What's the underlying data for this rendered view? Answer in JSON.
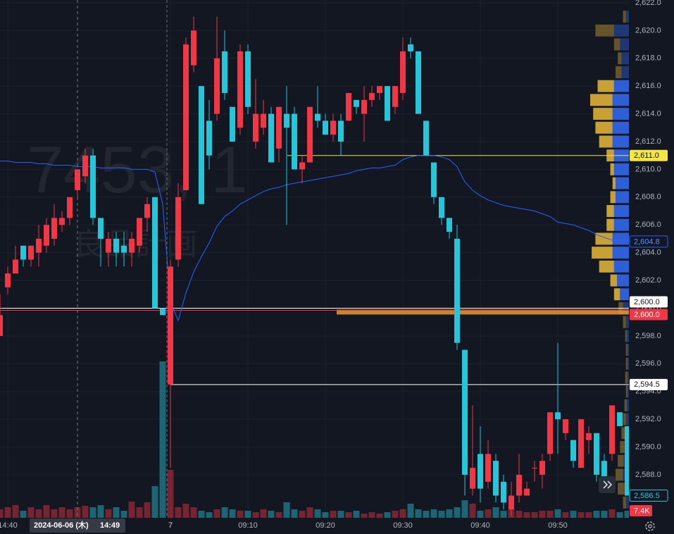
{
  "chart_data": {
    "type": "candlestick",
    "watermark": {
      "symbol": "7453, 1",
      "name": "良品計画"
    },
    "categories": [
      null,
      "14:40",
      null,
      null,
      null,
      null,
      null,
      null,
      null,
      null,
      null,
      null,
      null,
      null,
      null,
      null,
      null,
      null,
      null,
      null,
      null,
      null,
      "7",
      null,
      null,
      null,
      null,
      null,
      null,
      null,
      null,
      null,
      "09:10",
      null,
      null,
      null,
      null,
      null,
      null,
      null,
      null,
      null,
      "09:20",
      null,
      null,
      null,
      null,
      null,
      null,
      null,
      null,
      null,
      "09:30",
      null,
      null,
      null,
      null,
      null,
      null,
      null,
      null,
      null,
      "09:40",
      null,
      null,
      null,
      null,
      null,
      null,
      null,
      null,
      null,
      "09:50",
      null,
      null,
      null,
      null,
      null,
      null,
      null,
      null,
      null
    ],
    "open": [
      2598,
      2601.5,
      2602.5,
      2604.5,
      2603.5,
      2604,
      2604.5,
      2605,
      2606,
      2606.5,
      2608.5,
      2609.5,
      2611,
      2606.5,
      2604,
      2605,
      2604.5,
      2604,
      2604.5,
      2606.5,
      2608,
      2600,
      2594.5,
      2603.5,
      2608.5,
      2617.5,
      2616,
      2613.5,
      2614,
      2618.5,
      2614.5,
      2613,
      2618.5,
      2612,
      2613,
      2614,
      2611.5,
      2614,
      2614,
      2610,
      2610.5,
      2614,
      2613.5,
      2612.5,
      2613.5,
      2613.5,
      2615,
      2614,
      2615,
      2615.5,
      2616,
      2614.5,
      2615.5,
      2619,
      2618.5,
      2613.5,
      2610.5,
      2608,
      2606.5,
      2605,
      2597,
      2587,
      2589.5,
      2587.5,
      2589,
      2587.5,
      2585.5,
      2586.5,
      2586.5,
      2588.5,
      2588,
      2589.5,
      2592.5,
      2591,
      2590.5,
      2588.5,
      2590.5,
      2591,
      2589,
      2589.5,
      2592.5,
      2591.5
    ],
    "high": [
      2601,
      2603,
      2604.5,
      2604.5,
      2604.5,
      2606,
      2606.5,
      2607.5,
      2607,
      2608,
      2610,
      2611.5,
      2611.5,
      2606.5,
      2605.5,
      2605.5,
      2605.5,
      2605.5,
      2606.5,
      2608,
      2608,
      2600,
      2603.5,
      2609,
      2619.5,
      2621,
      2616,
      2615,
      2621,
      2620,
      2614.5,
      2619,
      2619,
      2616.5,
      2615,
      2614.5,
      2614.5,
      2616,
      2614.5,
      2611,
      2614.5,
      2616,
      2614,
      2614,
      2614,
      2615.5,
      2615,
      2616,
      2616,
      2616,
      2616,
      2616,
      2619.5,
      2619.5,
      2618.5,
      2613.5,
      2610.5,
      2608,
      2606.5,
      2606,
      2597,
      2593,
      2591.5,
      2590.5,
      2589.5,
      2588,
      2587.5,
      2589.5,
      2587.5,
      2589,
      2589.5,
      2592.5,
      2597.5,
      2592,
      2590.5,
      2592,
      2591.5,
      2591,
      2589.5,
      2593,
      2592.5,
      2591.5
    ],
    "low": [
      2598,
      2601,
      2602.5,
      2603,
      2603,
      2603,
      2604,
      2604.5,
      2605.5,
      2606,
      2608,
      2609,
      2606,
      2603,
      2603,
      2603,
      2603,
      2603,
      2604,
      2605.5,
      2600,
      2599.5,
      2588.5,
      2603,
      2608.5,
      2617,
      2607.5,
      2610,
      2613.5,
      2615,
      2612,
      2612.5,
      2614,
      2611.5,
      2612.5,
      2610.5,
      2610.5,
      2606,
      2610,
      2609,
      2610.5,
      2613,
      2612.5,
      2612,
      2611,
      2613.5,
      2614,
      2612,
      2614.5,
      2615,
      2613.5,
      2614,
      2615,
      2618,
      2614,
      2611,
      2607.5,
      2606,
      2605,
      2597,
      2586.5,
      2586.5,
      2586,
      2587,
      2586,
      2585.5,
      2585,
      2586,
      2586.5,
      2587.5,
      2587,
      2589,
      2589.5,
      2590.5,
      2588.5,
      2588.5,
      2589.5,
      2587.5,
      2587,
      2589,
      2591.5,
      2586.5
    ],
    "close": [
      2599.5,
      2602.5,
      2603.5,
      2603.5,
      2604.5,
      2605,
      2606,
      2606.5,
      2606.5,
      2608,
      2610,
      2611,
      2606.5,
      2605,
      2605,
      2604,
      2604,
      2605,
      2606.5,
      2607.5,
      2600,
      2599.5,
      2603,
      2608,
      2619,
      2620,
      2607.5,
      2611,
      2618,
      2615.5,
      2612,
      2618.5,
      2614.5,
      2614,
      2614,
      2610.5,
      2614.5,
      2613,
      2610,
      2610.5,
      2614.5,
      2613.5,
      2612.5,
      2613.5,
      2612,
      2615.5,
      2614.5,
      2615,
      2615.5,
      2616,
      2613.5,
      2616,
      2618.5,
      2618.5,
      2614,
      2611,
      2608,
      2606.5,
      2605.5,
      2597.5,
      2588,
      2588.5,
      2587,
      2589.5,
      2586.5,
      2586,
      2586.5,
      2588,
      2587,
      2588.5,
      2589,
      2592.5,
      2592,
      2592,
      2589,
      2592,
      2591,
      2588,
      2587.5,
      2593,
      2591.5,
      2586.5
    ],
    "last_label": "2,586.5",
    "up_color": "#f23645",
    "down_color": "#26c6da",
    "vwap": {
      "color": "#2962ff",
      "last_label": "2,604.8",
      "values": [
        2610.6,
        2610.6,
        2610.5,
        2610.5,
        2610.5,
        2610.4,
        2610.4,
        2610.3,
        2610.3,
        2610.3,
        2610.2,
        2610.2,
        2610.2,
        2610.1,
        2610.1,
        2610.1,
        2610.1,
        2610,
        2610,
        2610,
        2609.8,
        2607.5,
        2600.5,
        2599.1,
        2601.1,
        2602.6,
        2603.7,
        2604.7,
        2605.9,
        2606.6,
        2607,
        2607.5,
        2607.8,
        2608.1,
        2608.4,
        2608.6,
        2608.7,
        2608.9,
        2609,
        2609.1,
        2609.2,
        2609.3,
        2609.4,
        2609.5,
        2609.6,
        2609.7,
        2609.9,
        2610,
        2610.1,
        2610.1,
        2610.2,
        2610.3,
        2610.7,
        2610.9,
        2611,
        2611,
        2611,
        2610.9,
        2610.7,
        2610.2,
        2609.1,
        2608.5,
        2608.1,
        2607.8,
        2607.6,
        2607.4,
        2607.3,
        2607.2,
        2607.1,
        2607,
        2606.8,
        2606.6,
        2606.2,
        2606.1,
        2606,
        2605.8,
        2605.6,
        2605.3,
        2605.1,
        2604.9,
        2604.8,
        2604.8
      ]
    },
    "volume": {
      "vlim": [
        0,
        544000
      ],
      "last_label": "7.4K",
      "values": [
        8900,
        11100,
        13300,
        7400,
        11100,
        8900,
        13300,
        8900,
        11100,
        8900,
        11100,
        12600,
        11100,
        13300,
        8900,
        11100,
        7400,
        17000,
        11100,
        16300,
        33300,
        164300,
        50300,
        11100,
        14800,
        11100,
        7400,
        5900,
        8900,
        11100,
        8900,
        7400,
        7400,
        5900,
        8900,
        7400,
        5900,
        16300,
        8900,
        7400,
        11100,
        8900,
        5900,
        7400,
        7400,
        5900,
        7400,
        4400,
        5900,
        4400,
        5900,
        7400,
        8900,
        14800,
        8900,
        7400,
        8900,
        7400,
        8900,
        11100,
        18500,
        14800,
        7400,
        8900,
        11100,
        7400,
        8900,
        7400,
        5900,
        5900,
        7400,
        7400,
        8900,
        5900,
        7400,
        5900,
        5900,
        7400,
        7400,
        8900,
        5900,
        7400
      ]
    },
    "volume_profile": {
      "up_color": "#2f5fd6",
      "down_color": "#c9a033",
      "value_area": [
        2601,
        2616
      ],
      "prices": [
        2586,
        2587,
        2588,
        2589,
        2590,
        2591,
        2592,
        2593,
        2594,
        2595,
        2596,
        2597,
        2598,
        2599,
        2600,
        2601,
        2602,
        2603,
        2604,
        2605,
        2606,
        2607,
        2608,
        2609,
        2610,
        2611,
        2612,
        2613,
        2614,
        2615,
        2616,
        2617,
        2618,
        2619,
        2620,
        2621
      ],
      "up": [
        4,
        6,
        8,
        7,
        6,
        5,
        4,
        3,
        2,
        2,
        2,
        2,
        3,
        4,
        8,
        12,
        16,
        20,
        22,
        22,
        20,
        20,
        18,
        18,
        20,
        20,
        22,
        22,
        22,
        22,
        20,
        10,
        10,
        12,
        20,
        4
      ],
      "down": [
        4,
        9,
        10,
        8,
        6,
        5,
        4,
        3,
        2,
        3,
        2,
        2,
        2,
        4,
        6,
        8,
        9,
        20,
        28,
        23,
        10,
        10,
        7,
        4,
        5,
        10,
        18,
        23,
        26,
        30,
        22,
        8,
        5,
        8,
        25,
        4
      ]
    },
    "price_lines": [
      {
        "value": 2611,
        "label": "2,611.0",
        "color": "#f5e642"
      },
      {
        "value": 2600,
        "label": "2,600.0",
        "color": "#ffffff"
      },
      {
        "value": 2600,
        "label": "2,600.0",
        "color": "#f23645"
      },
      {
        "value": 2594.5,
        "label": "2,594.5",
        "color": "#ffffff"
      }
    ],
    "zone": {
      "value": 2600,
      "color": "#e89a2c"
    },
    "crosshair": {
      "date": "2024-06-06 (木)",
      "time": "14:49"
    },
    "ylim": [
      2584.9,
      2622.2
    ],
    "yticks": [
      {
        "value": 2588,
        "label": "2,588.0"
      },
      {
        "value": 2590,
        "label": "2,590.0"
      },
      {
        "value": 2592,
        "label": "2,592.0"
      },
      {
        "value": 2594,
        "label": "2,594.0"
      },
      {
        "value": 2596,
        "label": "2,596.0"
      },
      {
        "value": 2598,
        "label": "2,598.0"
      },
      {
        "value": 2600,
        "label": "2,600.0"
      },
      {
        "value": 2602,
        "label": "2,602.0"
      },
      {
        "value": 2604,
        "label": "2,604.0"
      },
      {
        "value": 2606,
        "label": "2,606.0"
      },
      {
        "value": 2608,
        "label": "2,608.0"
      },
      {
        "value": 2610,
        "label": "2,610.0"
      },
      {
        "value": 2612,
        "label": "2,612.0"
      },
      {
        "value": 2614,
        "label": "2,614.0"
      },
      {
        "value": 2616,
        "label": "2,616.0"
      },
      {
        "value": 2618,
        "label": "2,618.0"
      },
      {
        "value": 2620,
        "label": "2,620.0"
      },
      {
        "value": 2622,
        "label": "2,622.0"
      }
    ],
    "grid": true
  }
}
